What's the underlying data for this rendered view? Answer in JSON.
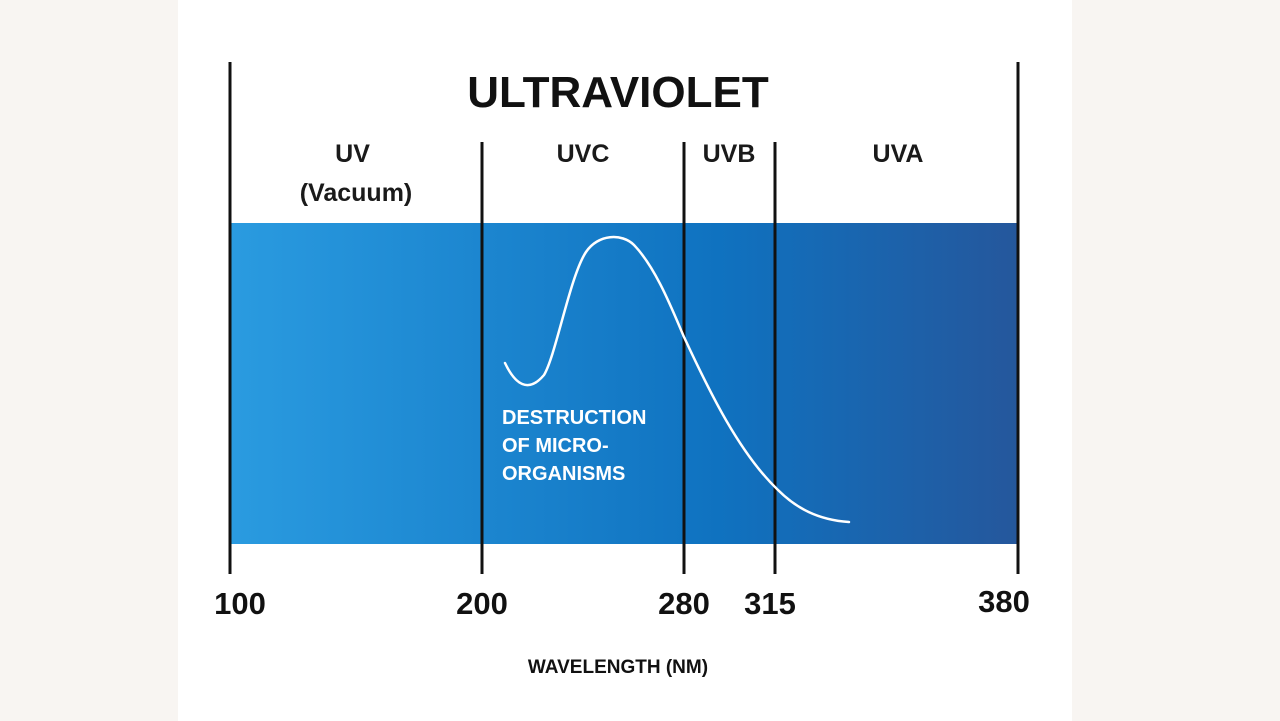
{
  "title": "ULTRAVIOLET",
  "colors": {
    "band_start": "#2a9be0",
    "band_mid": "#0f72c0",
    "band_end": "#25579c",
    "curve": "#ffffff"
  },
  "regions": [
    {
      "label_lines": [
        "UV",
        "(Vacuum)"
      ],
      "from": 100,
      "to": 200
    },
    {
      "label_lines": [
        "UVC"
      ],
      "from": 200,
      "to": 280
    },
    {
      "label_lines": [
        "UVB"
      ],
      "from": 280,
      "to": 315
    },
    {
      "label_lines": [
        "UVA"
      ],
      "from": 315,
      "to": 380
    }
  ],
  "ticks": [
    "100",
    "200",
    "280",
    "315",
    "380"
  ],
  "curve_label_lines": [
    "DESTRUCTION",
    "OF MICRO-",
    "ORGANISMS"
  ],
  "x_axis_label": "WAVELENGTH (NM)"
}
